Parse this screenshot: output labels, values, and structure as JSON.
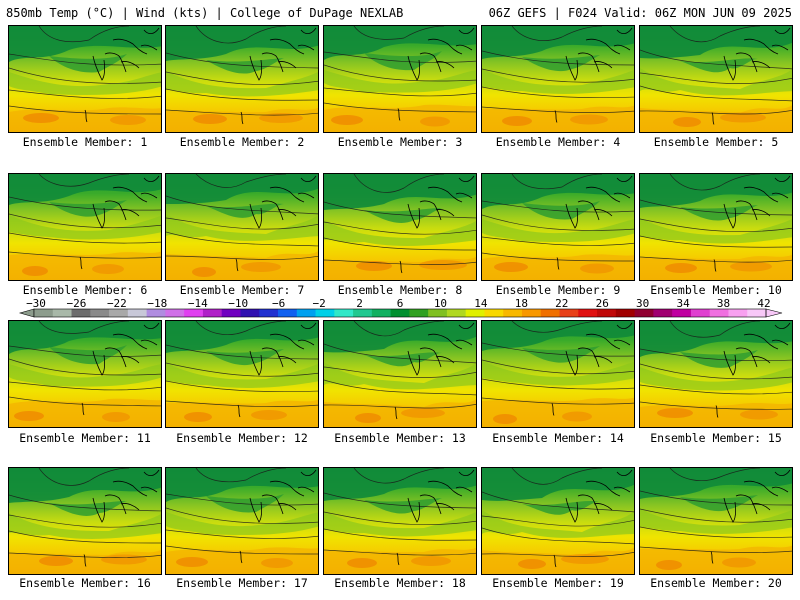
{
  "header": {
    "left": "850mb Temp (°C) | Wind (kts) | College of DuPage NEXLAB",
    "right": "06Z GEFS | F024 Valid: 06Z MON JUN 09 2025"
  },
  "members": [
    {
      "label": "Ensemble Member: 1"
    },
    {
      "label": "Ensemble Member: 2"
    },
    {
      "label": "Ensemble Member: 3"
    },
    {
      "label": "Ensemble Member: 4"
    },
    {
      "label": "Ensemble Member: 5"
    },
    {
      "label": "Ensemble Member: 6"
    },
    {
      "label": "Ensemble Member: 7"
    },
    {
      "label": "Ensemble Member: 8"
    },
    {
      "label": "Ensemble Member: 9"
    },
    {
      "label": "Ensemble Member: 10"
    },
    {
      "label": "Ensemble Member: 11"
    },
    {
      "label": "Ensemble Member: 12"
    },
    {
      "label": "Ensemble Member: 13"
    },
    {
      "label": "Ensemble Member: 14"
    },
    {
      "label": "Ensemble Member: 15"
    },
    {
      "label": "Ensemble Member: 16"
    },
    {
      "label": "Ensemble Member: 17"
    },
    {
      "label": "Ensemble Member: 18"
    },
    {
      "label": "Ensemble Member: 19"
    },
    {
      "label": "Ensemble Member: 20"
    }
  ],
  "colorbar": {
    "labels": [
      "−30",
      "−26",
      "−22",
      "−18",
      "−14",
      "−10",
      "−6",
      "−2",
      "2",
      "6",
      "10",
      "14",
      "18",
      "22",
      "26",
      "30",
      "34",
      "38",
      "42"
    ],
    "colors": [
      "#8c9c8c",
      "#a8b8a8",
      "#6c6c6c",
      "#8a8a8a",
      "#a8a8a8",
      "#c8c8d8",
      "#b08ce0",
      "#d070e8",
      "#e040f0",
      "#b020c8",
      "#7000c0",
      "#3010b0",
      "#2030d0",
      "#1060f0",
      "#00a0f0",
      "#00d0e8",
      "#30e8c8",
      "#20c890",
      "#10b060",
      "#009030",
      "#30a020",
      "#80c020",
      "#b0d820",
      "#e0f000",
      "#f8d800",
      "#f8b800",
      "#f89800",
      "#f07000",
      "#e84018",
      "#e01010",
      "#c00808",
      "#a00000",
      "#900030",
      "#a00070",
      "#c000a0",
      "#e040d0",
      "#f070e0",
      "#f8a0f0",
      "#f8c8f8"
    ]
  }
}
